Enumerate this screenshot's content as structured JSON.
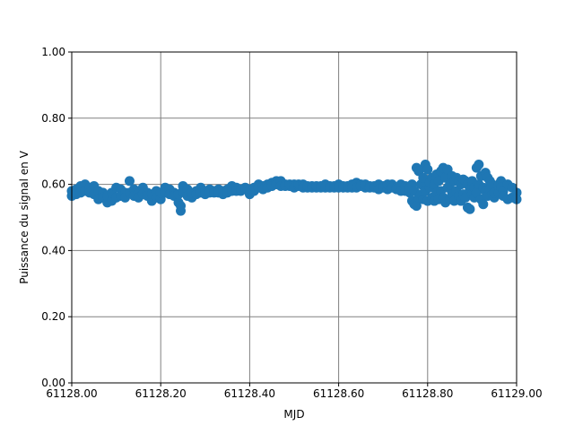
{
  "chart_data": {
    "type": "scatter",
    "title": "",
    "xlabel": "MJD",
    "ylabel": "Puissance du signal en V",
    "xlim": [
      61128.0,
      61129.0
    ],
    "ylim": [
      0.0,
      1.0
    ],
    "xticks": [
      61128.0,
      61128.2,
      61128.4,
      61128.6,
      61128.8,
      61129.0
    ],
    "xtick_labels": [
      "61128.00",
      "61128.20",
      "61128.40",
      "61128.60",
      "61128.80",
      "61129.00"
    ],
    "yticks": [
      0.0,
      0.2,
      0.4,
      0.6,
      0.8,
      1.0
    ],
    "ytick_labels": [
      "0.00",
      "0.20",
      "0.40",
      "0.60",
      "0.80",
      "1.00"
    ],
    "grid": true,
    "marker_color": "#1f77b4",
    "grid_color": "#808080",
    "points": [
      [
        61128.0,
        0.565
      ],
      [
        61128.0,
        0.58
      ],
      [
        61128.01,
        0.585
      ],
      [
        61128.01,
        0.57
      ],
      [
        61128.02,
        0.595
      ],
      [
        61128.02,
        0.575
      ],
      [
        61128.03,
        0.6
      ],
      [
        61128.03,
        0.58
      ],
      [
        61128.04,
        0.59
      ],
      [
        61128.04,
        0.575
      ],
      [
        61128.05,
        0.595
      ],
      [
        61128.05,
        0.57
      ],
      [
        61128.06,
        0.58
      ],
      [
        61128.06,
        0.555
      ],
      [
        61128.07,
        0.575
      ],
      [
        61128.07,
        0.56
      ],
      [
        61128.08,
        0.545
      ],
      [
        61128.08,
        0.565
      ],
      [
        61128.09,
        0.55
      ],
      [
        61128.09,
        0.575
      ],
      [
        61128.1,
        0.59
      ],
      [
        61128.1,
        0.56
      ],
      [
        61128.11,
        0.585
      ],
      [
        61128.11,
        0.565
      ],
      [
        61128.12,
        0.575
      ],
      [
        61128.12,
        0.56
      ],
      [
        61128.13,
        0.61
      ],
      [
        61128.13,
        0.575
      ],
      [
        61128.14,
        0.585
      ],
      [
        61128.14,
        0.565
      ],
      [
        61128.15,
        0.575
      ],
      [
        61128.15,
        0.56
      ],
      [
        61128.16,
        0.59
      ],
      [
        61128.16,
        0.57
      ],
      [
        61128.17,
        0.575
      ],
      [
        61128.17,
        0.565
      ],
      [
        61128.18,
        0.55
      ],
      [
        61128.18,
        0.57
      ],
      [
        61128.19,
        0.58
      ],
      [
        61128.19,
        0.56
      ],
      [
        61128.2,
        0.555
      ],
      [
        61128.2,
        0.575
      ],
      [
        61128.21,
        0.59
      ],
      [
        61128.21,
        0.575
      ],
      [
        61128.22,
        0.585
      ],
      [
        61128.22,
        0.57
      ],
      [
        61128.23,
        0.575
      ],
      [
        61128.23,
        0.565
      ],
      [
        61128.24,
        0.545
      ],
      [
        61128.24,
        0.57
      ],
      [
        61128.245,
        0.52
      ],
      [
        61128.245,
        0.535
      ],
      [
        61128.25,
        0.595
      ],
      [
        61128.25,
        0.58
      ],
      [
        61128.26,
        0.585
      ],
      [
        61128.26,
        0.565
      ],
      [
        61128.27,
        0.56
      ],
      [
        61128.27,
        0.575
      ],
      [
        61128.28,
        0.58
      ],
      [
        61128.28,
        0.57
      ],
      [
        61128.29,
        0.59
      ],
      [
        61128.29,
        0.575
      ],
      [
        61128.3,
        0.58
      ],
      [
        61128.3,
        0.57
      ],
      [
        61128.31,
        0.585
      ],
      [
        61128.31,
        0.575
      ],
      [
        61128.32,
        0.58
      ],
      [
        61128.32,
        0.575
      ],
      [
        61128.33,
        0.585
      ],
      [
        61128.33,
        0.575
      ],
      [
        61128.34,
        0.57
      ],
      [
        61128.34,
        0.58
      ],
      [
        61128.35,
        0.585
      ],
      [
        61128.35,
        0.575
      ],
      [
        61128.36,
        0.595
      ],
      [
        61128.36,
        0.58
      ],
      [
        61128.37,
        0.59
      ],
      [
        61128.37,
        0.58
      ],
      [
        61128.38,
        0.58
      ],
      [
        61128.38,
        0.585
      ],
      [
        61128.39,
        0.585
      ],
      [
        61128.39,
        0.59
      ],
      [
        61128.4,
        0.57
      ],
      [
        61128.4,
        0.585
      ],
      [
        61128.41,
        0.59
      ],
      [
        61128.41,
        0.58
      ],
      [
        61128.42,
        0.6
      ],
      [
        61128.42,
        0.59
      ],
      [
        61128.43,
        0.595
      ],
      [
        61128.43,
        0.585
      ],
      [
        61128.44,
        0.6
      ],
      [
        61128.44,
        0.59
      ],
      [
        61128.45,
        0.605
      ],
      [
        61128.45,
        0.595
      ],
      [
        61128.46,
        0.61
      ],
      [
        61128.46,
        0.6
      ],
      [
        61128.47,
        0.61
      ],
      [
        61128.47,
        0.595
      ],
      [
        61128.48,
        0.6
      ],
      [
        61128.48,
        0.595
      ],
      [
        61128.49,
        0.595
      ],
      [
        61128.49,
        0.6
      ],
      [
        61128.5,
        0.6
      ],
      [
        61128.5,
        0.59
      ],
      [
        61128.51,
        0.595
      ],
      [
        61128.51,
        0.6
      ],
      [
        61128.52,
        0.6
      ],
      [
        61128.52,
        0.59
      ],
      [
        61128.53,
        0.59
      ],
      [
        61128.53,
        0.595
      ],
      [
        61128.54,
        0.595
      ],
      [
        61128.54,
        0.59
      ],
      [
        61128.55,
        0.59
      ],
      [
        61128.55,
        0.595
      ],
      [
        61128.56,
        0.595
      ],
      [
        61128.56,
        0.59
      ],
      [
        61128.57,
        0.6
      ],
      [
        61128.57,
        0.59
      ],
      [
        61128.58,
        0.595
      ],
      [
        61128.58,
        0.59
      ],
      [
        61128.59,
        0.59
      ],
      [
        61128.59,
        0.595
      ],
      [
        61128.6,
        0.6
      ],
      [
        61128.6,
        0.59
      ],
      [
        61128.61,
        0.595
      ],
      [
        61128.61,
        0.59
      ],
      [
        61128.62,
        0.59
      ],
      [
        61128.62,
        0.595
      ],
      [
        61128.63,
        0.6
      ],
      [
        61128.63,
        0.59
      ],
      [
        61128.64,
        0.605
      ],
      [
        61128.64,
        0.59
      ],
      [
        61128.65,
        0.6
      ],
      [
        61128.65,
        0.595
      ],
      [
        61128.66,
        0.59
      ],
      [
        61128.66,
        0.6
      ],
      [
        61128.67,
        0.595
      ],
      [
        61128.67,
        0.59
      ],
      [
        61128.68,
        0.59
      ],
      [
        61128.68,
        0.595
      ],
      [
        61128.69,
        0.6
      ],
      [
        61128.69,
        0.585
      ],
      [
        61128.7,
        0.595
      ],
      [
        61128.7,
        0.59
      ],
      [
        61128.71,
        0.585
      ],
      [
        61128.71,
        0.6
      ],
      [
        61128.72,
        0.6
      ],
      [
        61128.72,
        0.59
      ],
      [
        61128.73,
        0.59
      ],
      [
        61128.73,
        0.585
      ],
      [
        61128.74,
        0.6
      ],
      [
        61128.74,
        0.58
      ],
      [
        61128.75,
        0.595
      ],
      [
        61128.75,
        0.58
      ],
      [
        61128.76,
        0.575
      ],
      [
        61128.76,
        0.59
      ],
      [
        61128.765,
        0.55
      ],
      [
        61128.765,
        0.6
      ],
      [
        61128.77,
        0.54
      ],
      [
        61128.77,
        0.58
      ],
      [
        61128.775,
        0.65
      ],
      [
        61128.775,
        0.535
      ],
      [
        61128.78,
        0.64
      ],
      [
        61128.78,
        0.56
      ],
      [
        61128.785,
        0.6
      ],
      [
        61128.785,
        0.57
      ],
      [
        61128.79,
        0.62
      ],
      [
        61128.79,
        0.555
      ],
      [
        61128.795,
        0.66
      ],
      [
        61128.795,
        0.58
      ],
      [
        61128.8,
        0.645
      ],
      [
        61128.8,
        0.55
      ],
      [
        61128.805,
        0.59
      ],
      [
        61128.805,
        0.605
      ],
      [
        61128.81,
        0.56
      ],
      [
        61128.81,
        0.62
      ],
      [
        61128.815,
        0.6
      ],
      [
        61128.815,
        0.55
      ],
      [
        61128.82,
        0.63
      ],
      [
        61128.82,
        0.575
      ],
      [
        61128.825,
        0.61
      ],
      [
        61128.825,
        0.555
      ],
      [
        61128.83,
        0.64
      ],
      [
        61128.83,
        0.58
      ],
      [
        61128.835,
        0.65
      ],
      [
        61128.835,
        0.56
      ],
      [
        61128.84,
        0.62
      ],
      [
        61128.84,
        0.545
      ],
      [
        61128.845,
        0.645
      ],
      [
        61128.845,
        0.59
      ],
      [
        61128.85,
        0.6
      ],
      [
        61128.85,
        0.555
      ],
      [
        61128.855,
        0.625
      ],
      [
        61128.855,
        0.57
      ],
      [
        61128.86,
        0.61
      ],
      [
        61128.86,
        0.55
      ],
      [
        61128.865,
        0.58
      ],
      [
        61128.865,
        0.62
      ],
      [
        61128.87,
        0.61
      ],
      [
        61128.87,
        0.565
      ],
      [
        61128.875,
        0.6
      ],
      [
        61128.875,
        0.55
      ],
      [
        61128.88,
        0.615
      ],
      [
        61128.88,
        0.57
      ],
      [
        61128.885,
        0.56
      ],
      [
        61128.885,
        0.61
      ],
      [
        61128.89,
        0.53
      ],
      [
        61128.89,
        0.6
      ],
      [
        61128.895,
        0.525
      ],
      [
        61128.895,
        0.585
      ],
      [
        61128.9,
        0.57
      ],
      [
        61128.9,
        0.61
      ],
      [
        61128.905,
        0.59
      ],
      [
        61128.905,
        0.56
      ],
      [
        61128.91,
        0.65
      ],
      [
        61128.91,
        0.575
      ],
      [
        61128.915,
        0.66
      ],
      [
        61128.915,
        0.6
      ],
      [
        61128.92,
        0.625
      ],
      [
        61128.92,
        0.555
      ],
      [
        61128.925,
        0.59
      ],
      [
        61128.925,
        0.54
      ],
      [
        61128.93,
        0.635
      ],
      [
        61128.93,
        0.58
      ],
      [
        61128.935,
        0.62
      ],
      [
        61128.935,
        0.565
      ],
      [
        61128.94,
        0.61
      ],
      [
        61128.94,
        0.585
      ],
      [
        61128.945,
        0.57
      ],
      [
        61128.945,
        0.6
      ],
      [
        61128.95,
        0.56
      ],
      [
        61128.95,
        0.575
      ],
      [
        61128.96,
        0.6
      ],
      [
        61128.96,
        0.575
      ],
      [
        61128.965,
        0.61
      ],
      [
        61128.965,
        0.59
      ],
      [
        61128.97,
        0.58
      ],
      [
        61128.97,
        0.565
      ],
      [
        61128.98,
        0.6
      ],
      [
        61128.98,
        0.555
      ],
      [
        61128.99,
        0.59
      ],
      [
        61128.99,
        0.56
      ],
      [
        61129.0,
        0.575
      ],
      [
        61129.0,
        0.555
      ]
    ]
  }
}
